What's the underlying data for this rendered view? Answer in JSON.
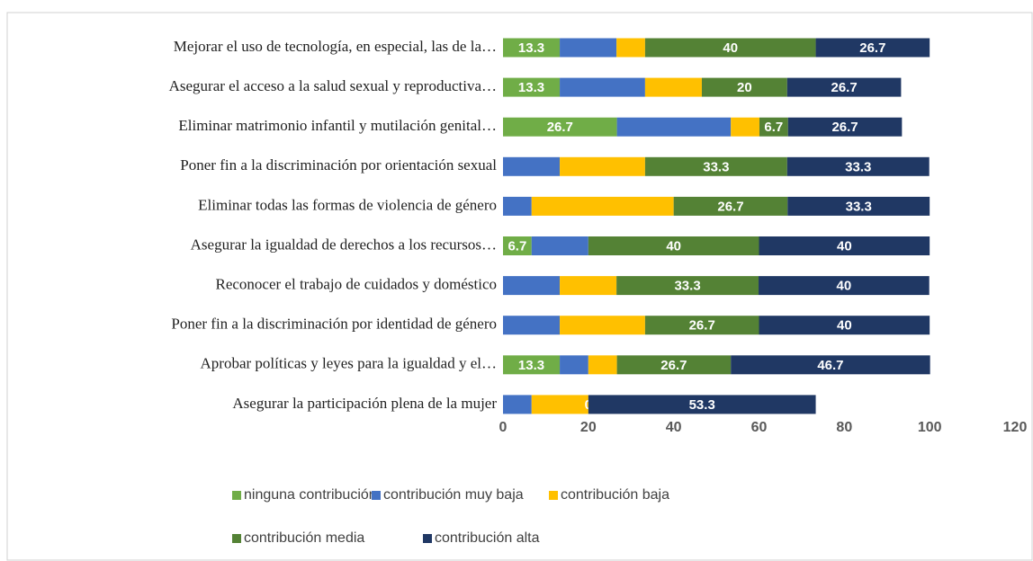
{
  "chart_data": {
    "type": "stacked_barh",
    "categories": [
      "Mejorar el uso de tecnología, en especial, las de la…",
      "Asegurar el acceso a la salud sexual y reproductiva…",
      "Eliminar matrimonio infantil y mutilación genital…",
      "Poner fin a la discriminación por orientación sexual",
      "Eliminar todas las formas de violencia de género",
      "Asegurar la igualdad de derechos a los recursos…",
      "Reconocer el trabajo de cuidados y doméstico",
      "Poner fin a la discriminación por identidad de género",
      "Aprobar políticas y leyes para la igualdad y el…",
      "Asegurar la participación plena de la mujer"
    ],
    "series": [
      {
        "name": "ninguna contribución",
        "color": "#70ad47",
        "data_labels": true,
        "values": [
          13.3,
          13.3,
          26.7,
          0,
          0,
          6.7,
          0,
          0,
          13.3,
          0
        ]
      },
      {
        "name": "contribución muy baja",
        "color": "#4472c4",
        "data_labels": false,
        "values": [
          13.3,
          20,
          26.7,
          13.3,
          6.7,
          13.3,
          13.3,
          13.3,
          6.7,
          6.7
        ]
      },
      {
        "name": "contribución baja",
        "color": "#ffc000",
        "data_labels": false,
        "values": [
          6.7,
          13.3,
          6.7,
          20,
          33.3,
          0,
          13.3,
          20,
          6.7,
          13.3
        ]
      },
      {
        "name": "contribución media",
        "color": "#548235",
        "data_labels": true,
        "values": [
          40,
          20,
          6.7,
          33.3,
          26.7,
          40,
          33.3,
          26.7,
          26.7,
          0
        ]
      },
      {
        "name": "contribución alta",
        "color": "#203864",
        "data_labels": true,
        "values": [
          26.7,
          26.7,
          26.7,
          33.3,
          33.3,
          40,
          40,
          40,
          46.7,
          53.3
        ]
      }
    ],
    "xlim": [
      0,
      120
    ],
    "xticks": [
      0,
      20,
      40,
      60,
      80,
      100,
      120
    ],
    "legend": "bottom"
  }
}
